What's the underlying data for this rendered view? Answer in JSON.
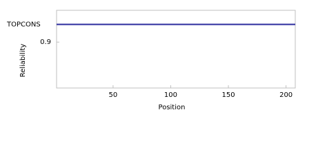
{
  "chart_data": {
    "type": "line",
    "x_label": "Position",
    "y_label": "Reliability",
    "x": [
      1,
      208
    ],
    "series": [
      {
        "name": "TOPCONS",
        "color": "#2a2a9c",
        "values": [
          1.0,
          1.0
        ]
      }
    ],
    "xlim": [
      1,
      208
    ],
    "xticks": [
      50,
      100,
      150,
      200
    ],
    "ylim": [
      0.64,
      1.08
    ],
    "yticks": [
      0.9
    ],
    "grid": false
  }
}
